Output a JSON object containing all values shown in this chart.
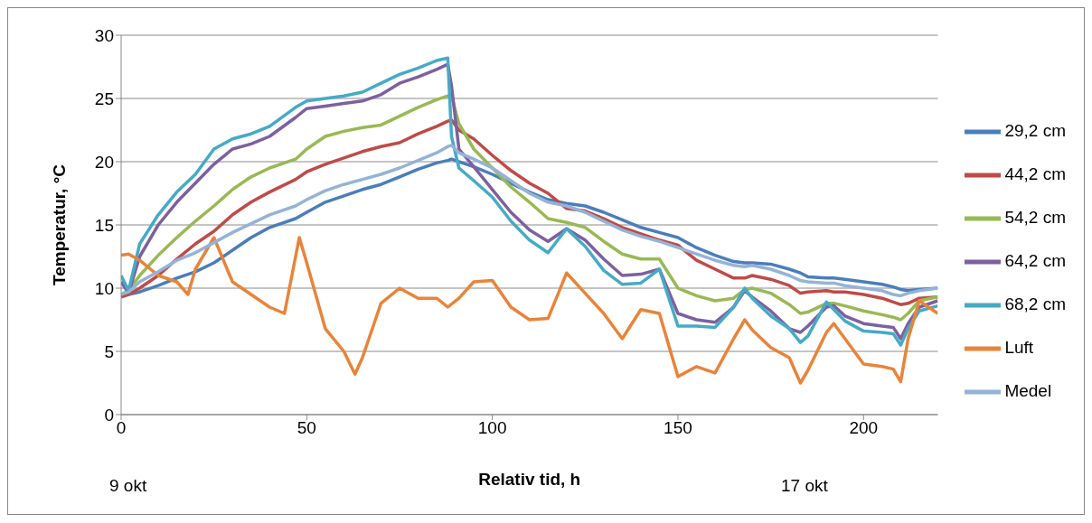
{
  "chart_data": {
    "type": "line",
    "xlabel": "Relativ tid, h",
    "ylabel": "Temperatur, °C",
    "x": [
      0,
      2,
      5,
      10,
      15,
      20,
      25,
      30,
      35,
      40,
      47,
      50,
      55,
      60,
      65,
      70,
      75,
      80,
      85,
      88,
      89,
      91,
      95,
      100,
      105,
      110,
      115,
      120,
      125,
      130,
      135,
      140,
      145,
      150,
      155,
      160,
      165,
      168,
      170,
      175,
      180,
      183,
      185,
      190,
      192,
      195,
      200,
      205,
      208,
      210,
      212,
      215,
      220
    ],
    "xlim": [
      0,
      220
    ],
    "xticks": [
      0,
      50,
      100,
      150,
      200
    ],
    "ylim": [
      0,
      30
    ],
    "yticks": [
      0,
      5,
      10,
      15,
      20,
      25,
      30
    ],
    "grid": "y",
    "legend": "right",
    "marker": "none",
    "line_style": "solid",
    "series": [
      {
        "name": "29,2 cm",
        "color": "#4a7ebb",
        "values": [
          9.5,
          9.5,
          9.7,
          10.2,
          10.8,
          11.3,
          12,
          13,
          14,
          14.8,
          15.5,
          16,
          16.8,
          17.3,
          17.8,
          18.2,
          18.8,
          19.4,
          19.9,
          20.1,
          20.2,
          20,
          19.6,
          19,
          18.3,
          17.6,
          17,
          16.7,
          16.5,
          16,
          15.4,
          14.8,
          14.4,
          14,
          13.2,
          12.6,
          12.1,
          12,
          12,
          11.9,
          11.5,
          11.2,
          10.9,
          10.8,
          10.8,
          10.7,
          10.5,
          10.3,
          10.1,
          9.9,
          9.8,
          9.9,
          10
        ]
      },
      {
        "name": "44,2 cm",
        "color": "#be4b48",
        "values": [
          9.3,
          9.5,
          10,
          11,
          12.3,
          13.5,
          14.5,
          15.8,
          16.8,
          17.6,
          18.6,
          19.2,
          19.8,
          20.3,
          20.8,
          21.2,
          21.5,
          22.2,
          22.8,
          23.2,
          23.3,
          22.5,
          21.8,
          20.5,
          19.3,
          18.3,
          17.5,
          16.3,
          16.1,
          15.5,
          14.8,
          14.3,
          13.8,
          13.4,
          12.2,
          11.5,
          10.8,
          10.8,
          11,
          10.7,
          10.2,
          9.6,
          9.7,
          9.8,
          9.7,
          9.7,
          9.5,
          9.2,
          8.9,
          8.7,
          8.8,
          9.2,
          9.3
        ]
      },
      {
        "name": "54,2 cm",
        "color": "#98b954",
        "values": [
          9.5,
          9.8,
          11,
          12.6,
          14,
          15.3,
          16.5,
          17.8,
          18.8,
          19.5,
          20.2,
          21,
          22,
          22.4,
          22.7,
          22.9,
          23.6,
          24.3,
          24.9,
          25.2,
          25.2,
          23,
          21,
          19.5,
          18,
          16.8,
          15.5,
          15.2,
          14.8,
          13.7,
          12.7,
          12.3,
          12.3,
          10,
          9.4,
          9,
          9.2,
          9.9,
          10,
          9.6,
          8.7,
          8,
          8.1,
          8.8,
          8.8,
          8.6,
          8.2,
          7.9,
          7.7,
          7.5,
          8,
          9,
          9.3
        ]
      },
      {
        "name": "64,2 cm",
        "color": "#7d60a0",
        "values": [
          10.5,
          9.6,
          12.5,
          15,
          16.8,
          18.3,
          19.8,
          21,
          21.4,
          22,
          23.5,
          24.2,
          24.4,
          24.6,
          24.8,
          25.3,
          26.2,
          26.7,
          27.3,
          27.7,
          26,
          21,
          19.6,
          17.8,
          16,
          14.6,
          13.7,
          14.7,
          13.8,
          12.3,
          11,
          11.1,
          11.5,
          8,
          7.5,
          7.3,
          8.5,
          9.8,
          9.3,
          8.2,
          6.8,
          6.5,
          7,
          8.5,
          8.6,
          7.8,
          7.2,
          7,
          6.9,
          6,
          7.2,
          8.5,
          9
        ]
      },
      {
        "name": "68,2 cm",
        "color": "#46aac5",
        "values": [
          11,
          9.8,
          13.5,
          15.8,
          17.6,
          19,
          21,
          21.8,
          22.2,
          22.8,
          24.3,
          24.8,
          25,
          25.2,
          25.5,
          26.2,
          26.9,
          27.4,
          28,
          28.2,
          22,
          19.5,
          18.5,
          17.2,
          15.3,
          13.8,
          12.8,
          14.7,
          13.3,
          11.4,
          10.3,
          10.4,
          11.5,
          7,
          7,
          6.9,
          8.5,
          10,
          9.2,
          7.8,
          6.8,
          5.7,
          6.2,
          8.9,
          8.3,
          7.4,
          6.6,
          6.5,
          6.4,
          5.5,
          6.8,
          8.2,
          8.6
        ]
      },
      {
        "name": "Luft",
        "color": "#e8843a",
        "x": [
          0,
          2,
          5,
          10,
          15,
          18,
          20,
          25,
          30,
          35,
          40,
          44,
          47,
          48,
          50,
          55,
          60,
          63,
          65,
          70,
          75,
          80,
          85,
          88,
          91,
          95,
          100,
          105,
          110,
          115,
          120,
          125,
          130,
          135,
          140,
          145,
          150,
          155,
          160,
          165,
          168,
          170,
          175,
          180,
          183,
          185,
          190,
          192,
          195,
          200,
          205,
          208,
          210,
          212,
          215,
          220
        ],
        "values": [
          12.6,
          12.7,
          12.2,
          11,
          10.5,
          9.5,
          11.5,
          14,
          10.5,
          9.5,
          8.5,
          8,
          12.5,
          14,
          12,
          6.8,
          5,
          3.2,
          4.5,
          8.8,
          10,
          9.2,
          9.2,
          8.5,
          9.2,
          10.5,
          10.6,
          8.5,
          7.5,
          7.6,
          11.2,
          9.6,
          8,
          6,
          8.3,
          8,
          3,
          3.8,
          3.3,
          6,
          7.5,
          6.7,
          5.3,
          4.5,
          2.5,
          3.5,
          6.5,
          7.2,
          6,
          4,
          3.8,
          3.6,
          2.6,
          6,
          9,
          8
        ]
      },
      {
        "name": "Medel",
        "color": "#95b3d7",
        "values": [
          9.5,
          9.7,
          10.5,
          11.3,
          12.2,
          12.8,
          13.6,
          14.4,
          15.1,
          15.8,
          16.5,
          17,
          17.7,
          18.2,
          18.6,
          19,
          19.5,
          20.1,
          20.7,
          21.2,
          21.3,
          20.7,
          20.2,
          19.5,
          18.5,
          17.5,
          16.8,
          16.5,
          16,
          15.3,
          14.6,
          14.1,
          13.7,
          13.2,
          12.7,
          12.2,
          11.8,
          11.7,
          11.8,
          11.5,
          11,
          10.6,
          10.5,
          10.4,
          10.4,
          10.2,
          10,
          9.8,
          9.5,
          9.4,
          9.6,
          9.8,
          10
        ]
      }
    ],
    "annotations": [
      "9 okt",
      "17 okt"
    ]
  }
}
